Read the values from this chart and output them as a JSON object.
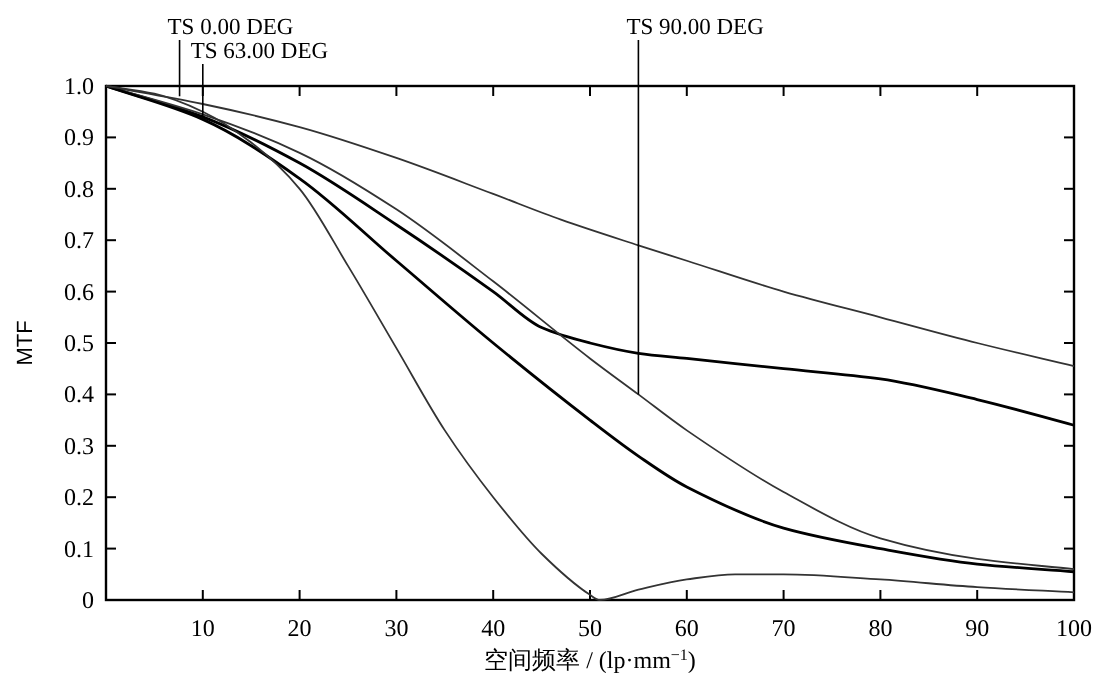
{
  "chart_data": {
    "type": "line",
    "xlabel": "空间频率 / (lp·mm$^{−1}$)",
    "ylabel": "MTF",
    "xlim": [
      0,
      100
    ],
    "ylim": [
      0,
      1
    ],
    "xticks": [
      {
        "value": 0,
        "label": null
      },
      10,
      20,
      30,
      40,
      50,
      60,
      70,
      80,
      90,
      100
    ],
    "yticks": [
      0,
      0.1,
      0.2,
      0.3,
      0.4,
      0.5,
      0.6,
      0.7,
      0.8,
      0.9,
      {
        "value": 1,
        "label": "1.0"
      }
    ],
    "grid": false,
    "marker": "none",
    "line_style": "solid",
    "series": [
      {
        "color": "#333333",
        "x": [
          0,
          10,
          20,
          30,
          40,
          47,
          55,
          60,
          70,
          80,
          90,
          100
        ],
        "values": [
          1,
          0.965,
          0.92,
          0.86,
          0.79,
          0.74,
          0.69,
          0.66,
          0.6,
          0.55,
          0.5,
          0.455
        ]
      },
      {
        "color": "#000000",
        "x": [
          0,
          10,
          20,
          30,
          40,
          45,
          50,
          55,
          60,
          70,
          80,
          90,
          100
        ],
        "values": [
          1,
          0.94,
          0.85,
          0.73,
          0.6,
          0.53,
          0.5,
          0.48,
          0.47,
          0.45,
          0.43,
          0.39,
          0.34
        ]
      },
      {
        "color": "#333333",
        "x": [
          0,
          10,
          20,
          30,
          40,
          50,
          55,
          60,
          70,
          80,
          90,
          100
        ],
        "values": [
          1,
          0.945,
          0.87,
          0.76,
          0.62,
          0.47,
          0.4,
          0.33,
          0.21,
          0.12,
          0.08,
          0.06
        ]
      },
      {
        "color": "#000000",
        "x": [
          0,
          10,
          20,
          30,
          40,
          50,
          55,
          60,
          70,
          80,
          90,
          100
        ],
        "values": [
          1,
          0.935,
          0.82,
          0.66,
          0.5,
          0.35,
          0.28,
          0.22,
          0.14,
          0.1,
          0.07,
          0.055
        ]
      },
      {
        "color": "#333333",
        "x": [
          0,
          5,
          10,
          15,
          20,
          25,
          30,
          35,
          40,
          45,
          50,
          51,
          55,
          60,
          65,
          70,
          80,
          90,
          100
        ],
        "values": [
          1,
          0.985,
          0.95,
          0.89,
          0.8,
          0.65,
          0.49,
          0.33,
          0.2,
          0.09,
          0.01,
          0,
          0.02,
          0.04,
          0.05,
          0.05,
          0.04,
          0.025,
          0.015
        ]
      }
    ],
    "annotations": [
      {
        "text": "TS 0.00 DEG",
        "x": 7.6,
        "y": 0.98
      },
      {
        "text": "TS 63.00 DEG",
        "x": 10,
        "y": 0.94
      },
      {
        "text": "TS 90.00 DEG",
        "x": 55,
        "y": 0.4
      }
    ]
  }
}
